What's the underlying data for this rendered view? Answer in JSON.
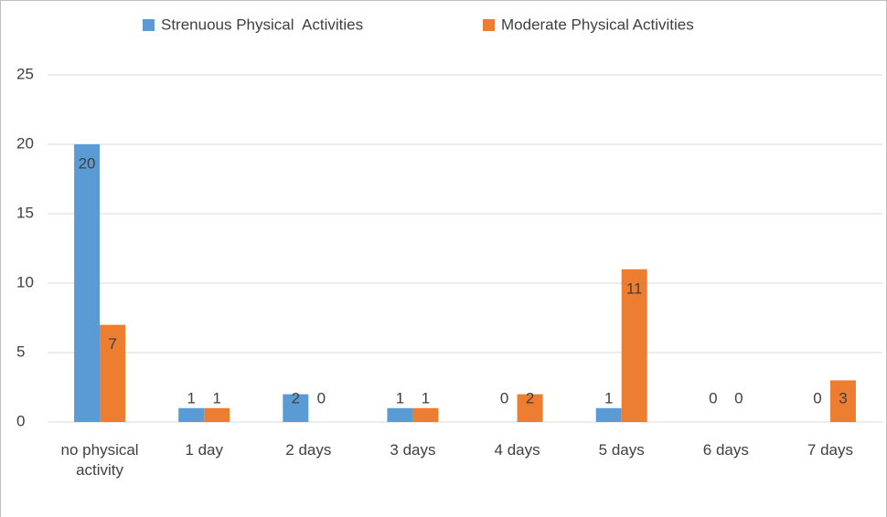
{
  "chart_data": {
    "type": "bar",
    "categories": [
      "no physical activity",
      "1 day",
      "2 days",
      "3 days",
      "4 days",
      "5 days",
      "6 days",
      "7 days"
    ],
    "series": [
      {
        "name": "Strenuous Physical  Activities",
        "color": "#5b9bd5",
        "values": [
          20,
          1,
          2,
          1,
          0,
          1,
          0,
          0
        ]
      },
      {
        "name": "Moderate Physical Activities",
        "color": "#ed7d31",
        "values": [
          7,
          1,
          0,
          1,
          2,
          11,
          0,
          3
        ]
      }
    ],
    "ylim": [
      0,
      25
    ],
    "yticks": [
      0,
      5,
      10,
      15,
      20,
      25
    ],
    "grid": true,
    "legend": "top"
  }
}
